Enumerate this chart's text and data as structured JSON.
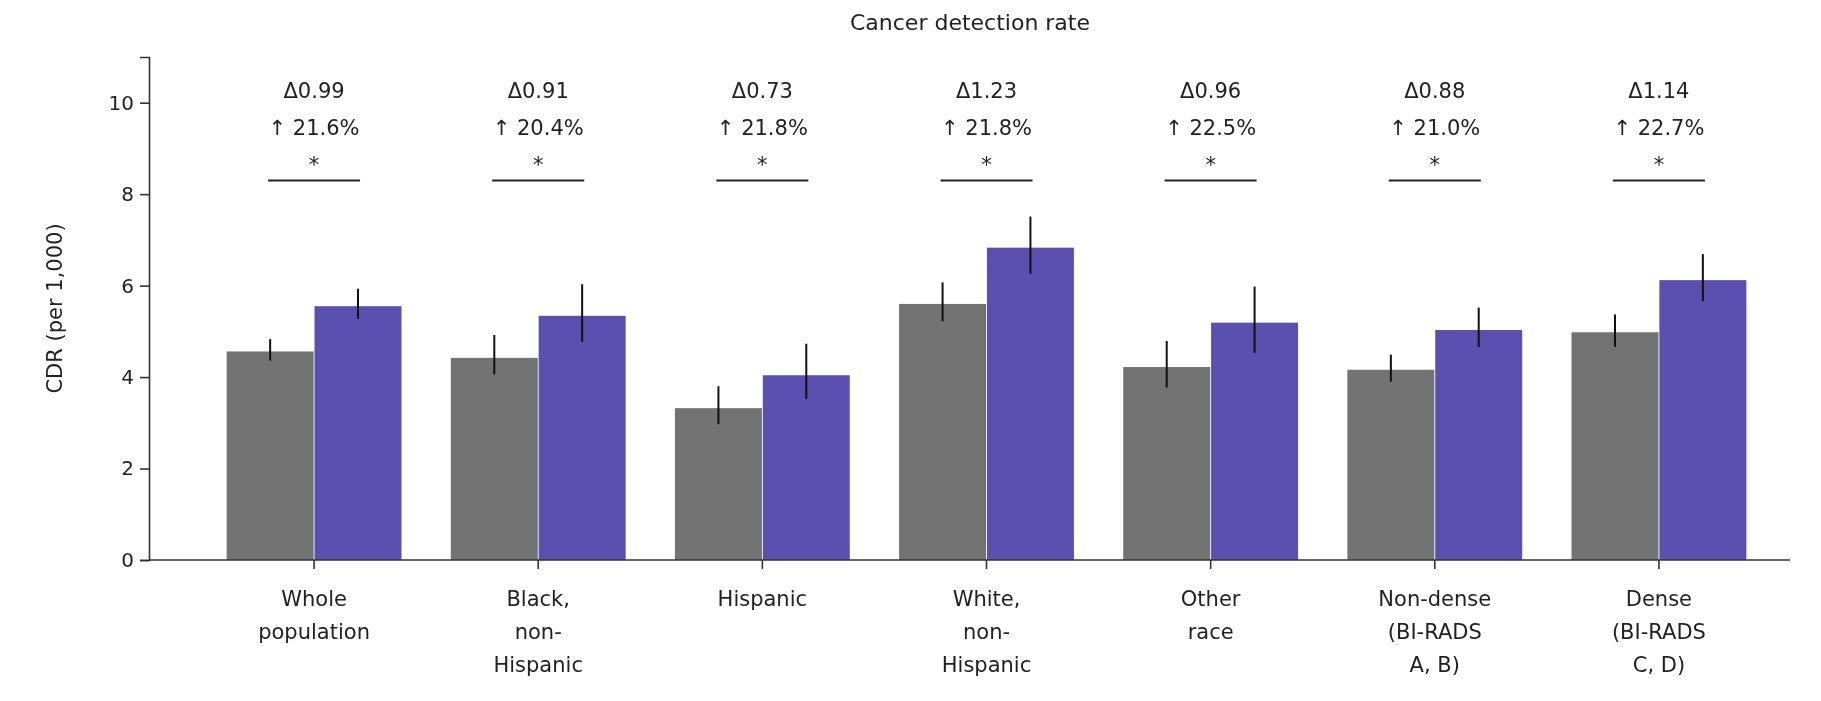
{
  "chart_data": {
    "type": "bar",
    "title": "Cancer detection rate",
    "ylabel": "CDR (per 1,000)",
    "categories": [
      "Whole population",
      "Black, non-Hispanic",
      "Hispanic",
      "White, non-Hispanic",
      "Other race",
      "Non-dense (BI-RADS A, B)",
      "Dense (BI-RADS C, D)"
    ],
    "series": [
      {
        "color": "#737373",
        "values": [
          4.56,
          4.42,
          3.32,
          5.6,
          4.22,
          4.16,
          4.98
        ],
        "errors": [
          [
            4.36,
            4.83
          ],
          [
            4.06,
            4.92
          ],
          [
            2.97,
            3.8
          ],
          [
            5.22,
            6.07
          ],
          [
            3.77,
            4.79
          ],
          [
            3.9,
            4.49
          ],
          [
            4.66,
            5.37
          ]
        ]
      },
      {
        "color": "#5b4fb0",
        "values": [
          5.55,
          5.34,
          4.04,
          6.83,
          5.19,
          5.03,
          6.12
        ],
        "errors": [
          [
            5.27,
            5.93
          ],
          [
            4.77,
            6.03
          ],
          [
            3.52,
            4.73
          ],
          [
            6.26,
            7.51
          ],
          [
            4.53,
            5.98
          ],
          [
            4.66,
            5.52
          ],
          [
            5.66,
            6.69
          ]
        ]
      }
    ],
    "ylim": [
      0,
      11
    ],
    "yticks": [
      0,
      2,
      4,
      6,
      8,
      10
    ],
    "grid": false,
    "annotations": [
      "Δ0.99\n↑ 21.6%\n*",
      "Δ0.91\n↑ 20.4%\n*",
      "Δ0.73\n↑ 21.8%\n*",
      "Δ1.23\n↑ 21.8%\n*",
      "Δ0.96\n↑ 22.5%\n*",
      "Δ0.88\n↑ 21.0%\n*",
      "Δ1.14\n↑ 22.7%\n*"
    ]
  }
}
